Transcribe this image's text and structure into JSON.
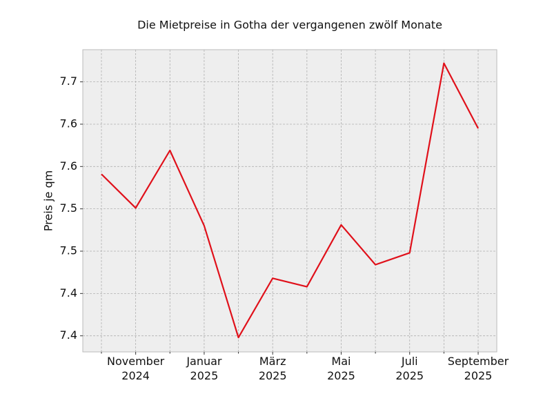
{
  "chart_data": {
    "type": "line",
    "title": "Die Mietpreise in Gotha der vergangenen zwölf Monate",
    "y_label": "Preis je qm",
    "categories": [
      null,
      "November\n2024",
      null,
      "Januar\n2025",
      null,
      "März\n2025",
      null,
      "Mai\n2025",
      null,
      "Juli\n2025",
      null,
      "September\n2025"
    ],
    "series": [
      {
        "name": "Preis je qm",
        "color": "#e0101a",
        "values": [
          7.591,
          7.551,
          7.619,
          7.53,
          7.398,
          7.468,
          7.458,
          7.531,
          7.484,
          7.498,
          7.722,
          7.645
        ]
      }
    ],
    "ylim": [
      7.381,
      7.738
    ],
    "yticks": [
      {
        "value": 7.4,
        "label": "7.4"
      },
      {
        "value": 7.45,
        "label": "7.4"
      },
      {
        "value": 7.5,
        "label": "7.5"
      },
      {
        "value": 7.55,
        "label": "7.5"
      },
      {
        "value": 7.6,
        "label": "7.6"
      },
      {
        "value": 7.65,
        "label": "7.6"
      },
      {
        "value": 7.7,
        "label": "7.7"
      }
    ],
    "grid": true
  }
}
